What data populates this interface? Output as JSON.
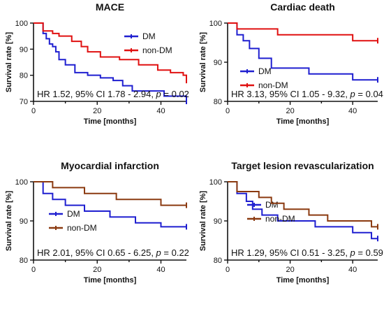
{
  "chart_data": [
    {
      "type": "line",
      "title": "MACE",
      "xlabel": "Time [months]",
      "ylabel": "Survival rate [%]",
      "xlim": [
        0,
        48
      ],
      "ylim": [
        70,
        100
      ],
      "xticks": [
        0,
        20,
        40
      ],
      "yticks": [
        70,
        80,
        90,
        100
      ],
      "legend_position": "top-right",
      "annotation": {
        "prefix": "HR 1.52, 95% CI 1.78 - 2.94, ",
        "p_symbol": "p",
        "suffix": " = 0.02"
      },
      "series": [
        {
          "name": "DM",
          "color": "#1f1fd0",
          "style": "step",
          "x": [
            0,
            3,
            4,
            5,
            6,
            7,
            8,
            10,
            13,
            17,
            21,
            25,
            28,
            31,
            41,
            48
          ],
          "y": [
            100,
            96,
            94,
            92,
            91,
            89,
            86,
            84,
            81,
            80,
            79,
            78,
            76,
            74,
            72,
            70
          ]
        },
        {
          "name": "non-DM",
          "color": "#e01010",
          "style": "step",
          "x": [
            0,
            3,
            6,
            8,
            12,
            15,
            17,
            21,
            27,
            33,
            39,
            43,
            47,
            48
          ],
          "y": [
            100,
            97,
            96,
            95,
            93,
            91,
            89,
            87,
            86,
            84,
            82,
            81,
            80,
            78
          ]
        }
      ]
    },
    {
      "type": "line",
      "title": "Cardiac death",
      "xlabel": "Time [months]",
      "ylabel": "Survival rate [%]",
      "xlim": [
        0,
        48
      ],
      "ylim": [
        80,
        100
      ],
      "xticks": [
        0,
        20,
        40
      ],
      "yticks": [
        80,
        90,
        100
      ],
      "legend_position": "center-left",
      "annotation": {
        "prefix": "HR 3.13, 95% CI 1.05 - 9.32, ",
        "p_symbol": "p",
        "suffix": " = 0.04"
      },
      "series": [
        {
          "name": "DM",
          "color": "#1f1fd0",
          "style": "step",
          "x": [
            0,
            3,
            5,
            7,
            10,
            14,
            26,
            40,
            48
          ],
          "y": [
            100,
            97,
            95.5,
            93.5,
            91,
            88.5,
            87,
            85.5,
            85.5
          ]
        },
        {
          "name": "non-DM",
          "color": "#e01010",
          "style": "step",
          "x": [
            0,
            3,
            16,
            40,
            48
          ],
          "y": [
            100,
            98.5,
            97,
            95.5,
            95.5
          ]
        }
      ]
    },
    {
      "type": "line",
      "title": "Myocardial infarction",
      "xlabel": "Time [months]",
      "ylabel": "Survival rate [%]",
      "xlim": [
        0,
        48
      ],
      "ylim": [
        80,
        100
      ],
      "xticks": [
        0,
        20,
        40
      ],
      "yticks": [
        80,
        90,
        100
      ],
      "legend_position": "center-left",
      "annotation": {
        "prefix": "HR 2.01, 95% CI 0.65 - 6.25, ",
        "p_symbol": "p",
        "suffix": " = 0.22"
      },
      "series": [
        {
          "name": "DM",
          "color": "#1f1fd0",
          "style": "step",
          "x": [
            0,
            3,
            6,
            10,
            16,
            24,
            32,
            40,
            48
          ],
          "y": [
            100,
            97,
            95.5,
            94,
            92.5,
            91,
            89.5,
            88.5,
            88.5
          ]
        },
        {
          "name": "non-DM",
          "color": "#8b3a10",
          "style": "step",
          "x": [
            0,
            6,
            16,
            26,
            40,
            48
          ],
          "y": [
            100,
            98.5,
            97,
            95.5,
            94,
            94
          ]
        }
      ]
    },
    {
      "type": "line",
      "title": "Target lesion revascularization",
      "xlabel": "Time [months]",
      "ylabel": "Survival rate [%]",
      "xlim": [
        0,
        48
      ],
      "ylim": [
        80,
        100
      ],
      "xticks": [
        0,
        20,
        40
      ],
      "yticks": [
        80,
        90,
        100
      ],
      "legend_position": "center-left",
      "annotation": {
        "prefix": "HR 1.29, 95% CI 0.51 - 3.25, ",
        "p_symbol": "p",
        "suffix": " = 0.59"
      },
      "series": [
        {
          "name": "DM",
          "color": "#1f1fd0",
          "style": "step",
          "x": [
            0,
            3,
            6,
            8,
            11,
            16,
            28,
            40,
            46,
            48
          ],
          "y": [
            100,
            97,
            95,
            93,
            91.5,
            90,
            88.5,
            87,
            85.5,
            85.5
          ]
        },
        {
          "name": "non-DM",
          "color": "#8b3a10",
          "style": "step",
          "x": [
            0,
            3,
            10,
            14,
            18,
            26,
            32,
            46,
            48
          ],
          "y": [
            100,
            97.5,
            96,
            94.5,
            93,
            91.5,
            90,
            88.5,
            88.5
          ]
        }
      ]
    }
  ]
}
